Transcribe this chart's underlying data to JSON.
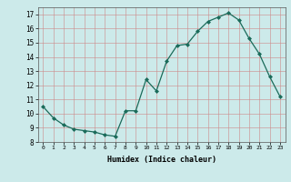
{
  "x": [
    0,
    1,
    2,
    3,
    4,
    5,
    6,
    7,
    8,
    9,
    10,
    11,
    12,
    13,
    14,
    15,
    16,
    17,
    18,
    19,
    20,
    21,
    22,
    23
  ],
  "y": [
    10.5,
    9.7,
    9.2,
    8.9,
    8.8,
    8.7,
    8.5,
    8.4,
    10.2,
    10.2,
    12.4,
    11.6,
    13.7,
    14.8,
    14.9,
    15.8,
    16.5,
    16.8,
    17.1,
    16.6,
    15.3,
    14.2,
    12.6,
    11.2
  ],
  "xlabel": "Humidex (Indice chaleur)",
  "xlim": [
    -0.5,
    23.5
  ],
  "ylim": [
    8,
    17.5
  ],
  "yticks": [
    8,
    9,
    10,
    11,
    12,
    13,
    14,
    15,
    16,
    17
  ],
  "xticks": [
    0,
    1,
    2,
    3,
    4,
    5,
    6,
    7,
    8,
    9,
    10,
    11,
    12,
    13,
    14,
    15,
    16,
    17,
    18,
    19,
    20,
    21,
    22,
    23
  ],
  "line_color": "#1a6b5a",
  "marker": "D",
  "marker_size": 2.0,
  "bg_color": "#cceaea",
  "grid_color": "#aaaacc",
  "title": ""
}
